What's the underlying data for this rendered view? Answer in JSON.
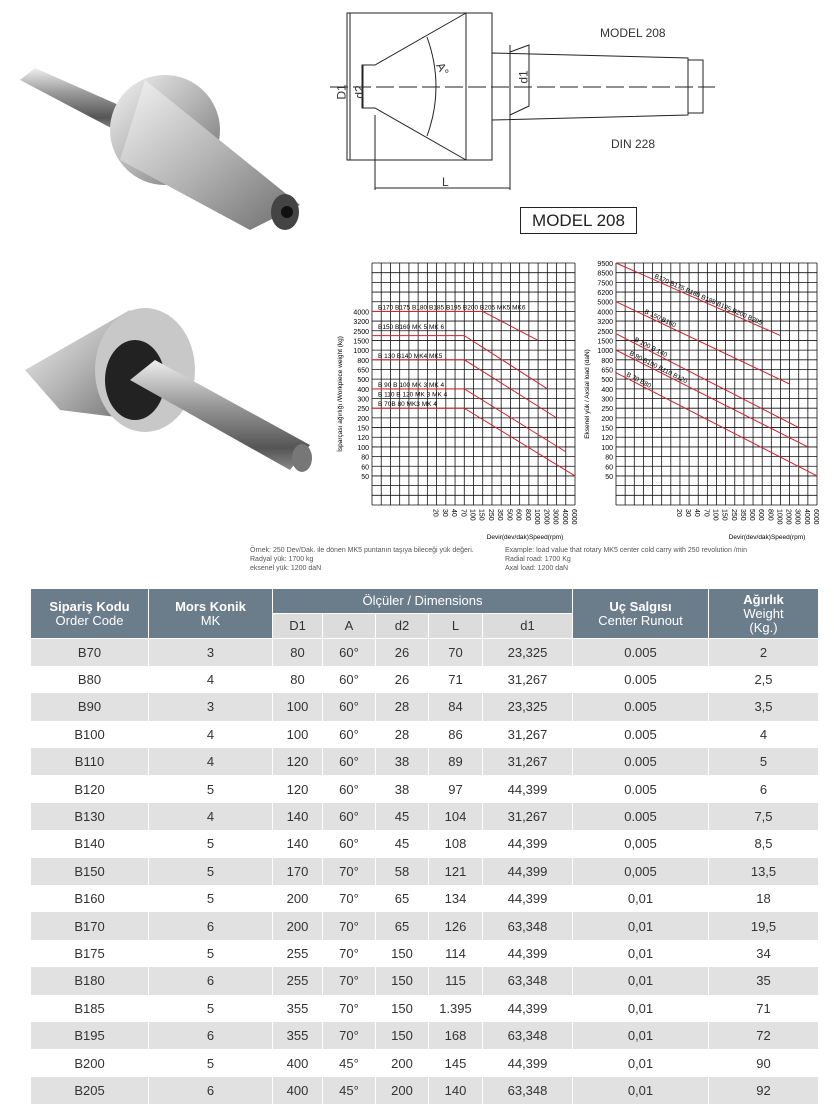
{
  "drawing": {
    "label_top": "MODEL 208",
    "label_bottom": "DIN 228",
    "model_box": "MODEL 208",
    "dim_D1": "D1",
    "dim_d2": "d2",
    "dim_A": "A°",
    "dim_d1": "d1",
    "dim_L": "L"
  },
  "chart_data": [
    {
      "type": "line",
      "ylabel": "İsparçası ağırlığı /Workpiece weight (kg)",
      "xlabel": "Devir(dev/dak)Speed(rpm)",
      "x_ticks": [
        "20",
        "30",
        "40",
        "70",
        "100",
        "150",
        "250",
        "350",
        "500",
        "600",
        "800",
        "1000",
        "2000",
        "3000",
        "4000",
        "6000"
      ],
      "y_ticks": [
        "4000",
        "3200",
        "2500",
        "1500",
        "1000",
        "800",
        "650",
        "500",
        "400",
        "300",
        "250",
        "200",
        "150",
        "120",
        "100",
        "80",
        "60",
        "50"
      ],
      "grid": true,
      "series": [
        {
          "name": "B170 B175 B180 B185 B195 B200 B205 MK5 MK6",
          "points": [
            [
              "start",
              "4000"
            ],
            [
              "150",
              "4000"
            ],
            [
              "1000",
              "1500"
            ]
          ]
        },
        {
          "name": "B150 B160 MK 5 MK 6",
          "points": [
            [
              "start",
              "2000"
            ],
            [
              "70",
              "2000"
            ],
            [
              "2000",
              "400"
            ]
          ]
        },
        {
          "name": "B 130 B140 MK4 MK5",
          "points": [
            [
              "start",
              "800"
            ],
            [
              "70",
              "800"
            ],
            [
              "3000",
              "200"
            ]
          ]
        },
        {
          "name": "B 90 B 100 MK 3 MK 4",
          "points": [
            [
              "start",
              "400"
            ],
            [
              "70",
              "400"
            ],
            [
              "4000",
              "90"
            ]
          ]
        },
        {
          "name": "B 110 B 120 MK 3 MK 4",
          "points": []
        },
        {
          "name": "B 70B 80 MK3 MK 4",
          "points": [
            [
              "start",
              "250"
            ],
            [
              "70",
              "250"
            ],
            [
              "6000",
              "50"
            ]
          ]
        }
      ]
    },
    {
      "type": "line",
      "ylabel": "Eksenel yük / Axsial load (daN)",
      "xlabel": "Devir(dev/dak)Speed(rpm)",
      "x_ticks": [
        "20",
        "30",
        "40",
        "70",
        "100",
        "150",
        "250",
        "350",
        "500",
        "600",
        "800",
        "1000",
        "2000",
        "3000",
        "4000",
        "6000"
      ],
      "y_ticks": [
        "9500",
        "8500",
        "7500",
        "6200",
        "5000",
        "4000",
        "3200",
        "2500",
        "1500",
        "1000",
        "800",
        "650",
        "500",
        "400",
        "300",
        "250",
        "200",
        "150",
        "120",
        "100",
        "80",
        "60",
        "50"
      ],
      "grid": true,
      "series": [
        {
          "name": "B170 B175 B180 B185 B195 B200 B205",
          "points": [
            [
              "start",
              "9500"
            ],
            [
              "1000",
              "2000"
            ]
          ]
        },
        {
          "name": "B 150 B160",
          "points": [
            [
              "start",
              "5000"
            ],
            [
              "2000",
              "450"
            ]
          ]
        },
        {
          "name": "B 100 B 140",
          "points": [
            [
              "start",
              "2200"
            ],
            [
              "3000",
              "150"
            ]
          ]
        },
        {
          "name": "B 90 B100 B110 B120",
          "points": [
            [
              "start",
              "1000"
            ],
            [
              "4000",
              "100"
            ]
          ]
        },
        {
          "name": "B 70 B80",
          "points": [
            [
              "start",
              "600"
            ],
            [
              "6000",
              "50"
            ]
          ]
        }
      ]
    }
  ],
  "notes": {
    "tr": [
      "Örnek: 250 Dev/Dak. ile dönen MK5 puntanın taşıya bileceği yük değeri.",
      "Radyal yük: 1700 kg",
      "eksenel yük: 1200 daN"
    ],
    "en": [
      "Example: load value that rotary MK5 center cold carry with 250 revolution /min",
      "Radial road: 1700 Kg",
      "Axal load: 1200 daN"
    ]
  },
  "table": {
    "h_code": "Sipariş Kodu",
    "h_code_en": "Order Code",
    "h_mk": "Mors Konik",
    "h_mk_en": "MK",
    "h_dim": "Ölçüler / Dimensions",
    "h_run": "Uç Salgısı",
    "h_run_en": "Center Runout",
    "h_w": "Ağırlık",
    "h_w_en": "Weight",
    "h_w_unit": "(Kg.)",
    "sub": [
      "D1",
      "A",
      "d2",
      "L",
      "d1"
    ],
    "rows": [
      [
        "B70",
        "3",
        "80",
        "60°",
        "26",
        "70",
        "23,325",
        "0.005",
        "2"
      ],
      [
        "B80",
        "4",
        "80",
        "60°",
        "26",
        "71",
        "31,267",
        "0.005",
        "2,5"
      ],
      [
        "B90",
        "3",
        "100",
        "60°",
        "28",
        "84",
        "23,325",
        "0.005",
        "3,5"
      ],
      [
        "B100",
        "4",
        "100",
        "60°",
        "28",
        "86",
        "31,267",
        "0.005",
        "4"
      ],
      [
        "B110",
        "4",
        "120",
        "60°",
        "38",
        "89",
        "31,267",
        "0.005",
        "5"
      ],
      [
        "B120",
        "5",
        "120",
        "60°",
        "38",
        "97",
        "44,399",
        "0.005",
        "6"
      ],
      [
        "B130",
        "4",
        "140",
        "60°",
        "45",
        "104",
        "31,267",
        "0.005",
        "7,5"
      ],
      [
        "B140",
        "5",
        "140",
        "60°",
        "45",
        "108",
        "44,399",
        "0,005",
        "8,5"
      ],
      [
        "B150",
        "5",
        "170",
        "70°",
        "58",
        "121",
        "44,399",
        "0,005",
        "13,5"
      ],
      [
        "B160",
        "5",
        "200",
        "70°",
        "65",
        "134",
        "44,399",
        "0,01",
        "18"
      ],
      [
        "B170",
        "6",
        "200",
        "70°",
        "65",
        "126",
        "63,348",
        "0,01",
        "19,5"
      ],
      [
        "B175",
        "5",
        "255",
        "70°",
        "150",
        "114",
        "44,399",
        "0,01",
        "34"
      ],
      [
        "B180",
        "6",
        "255",
        "70°",
        "150",
        "115",
        "63,348",
        "0,01",
        "35"
      ],
      [
        "B185",
        "5",
        "355",
        "70°",
        "150",
        "1.395",
        "44,399",
        "0,01",
        "71"
      ],
      [
        "B195",
        "6",
        "355",
        "70°",
        "150",
        "168",
        "63,348",
        "0,01",
        "72"
      ],
      [
        "B200",
        "5",
        "400",
        "45°",
        "200",
        "145",
        "44,399",
        "0,01",
        "90"
      ],
      [
        "B205",
        "6",
        "400",
        "45°",
        "200",
        "140",
        "63,348",
        "0,01",
        "92"
      ]
    ]
  },
  "colors": {
    "header": "#6b7c8b",
    "row_alt": "#e1e1e1",
    "chart_line": "#d4202a"
  }
}
